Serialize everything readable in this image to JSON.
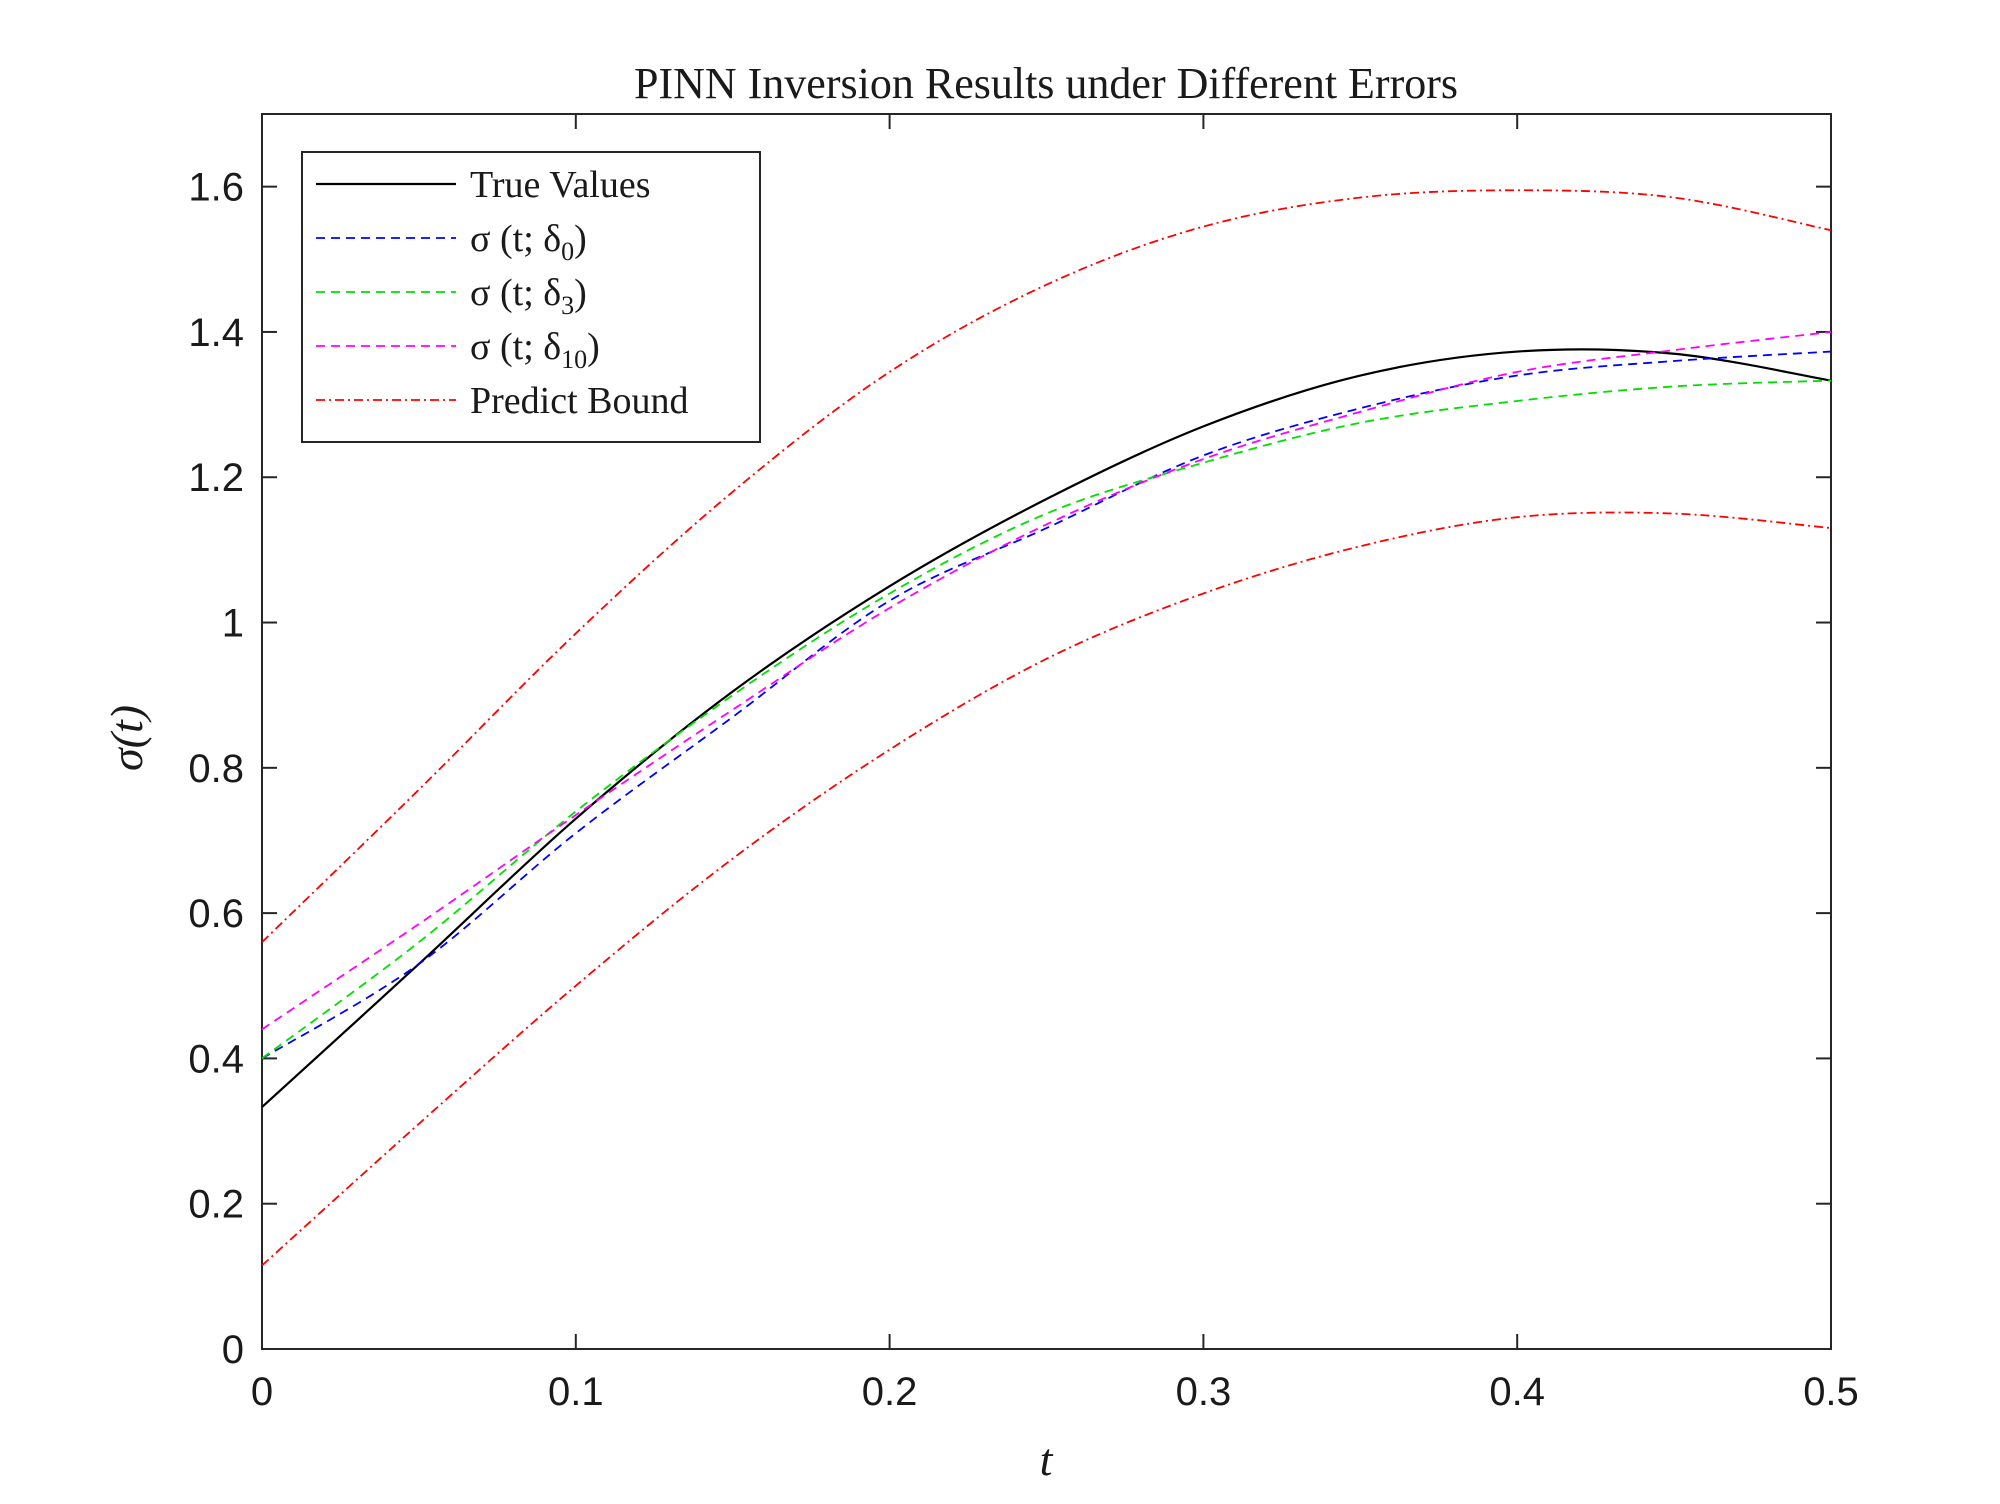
{
  "chart_data": {
    "type": "line",
    "title": "PINN Inversion Results under Different Errors",
    "xlabel": "t",
    "ylabel": "σ(t)",
    "xlim": [
      0,
      0.5
    ],
    "ylim": [
      0,
      1.7
    ],
    "xticks": [
      0,
      0.1,
      0.2,
      0.3,
      0.4,
      0.5
    ],
    "xtick_labels": [
      "0",
      "0.1",
      "0.2",
      "0.3",
      "0.4",
      "0.5"
    ],
    "yticks": [
      0,
      0.2,
      0.4,
      0.6,
      0.8,
      1.0,
      1.2,
      1.4,
      1.6
    ],
    "ytick_labels": [
      "0",
      "0.2",
      "0.4",
      "0.6",
      "0.8",
      "1",
      "1.2",
      "1.4",
      "1.6"
    ],
    "grid": false,
    "legend_position": "top-left",
    "x": [
      0,
      0.05,
      0.1,
      0.15,
      0.2,
      0.25,
      0.3,
      0.35,
      0.4,
      0.45,
      0.5
    ],
    "series": [
      {
        "name": "True Values",
        "legend_main": "True Values",
        "legend_sub": "",
        "legend_tail": "",
        "color": "#000000",
        "style": "solid",
        "values": [
          0.333,
          0.53,
          0.73,
          0.905,
          1.05,
          1.17,
          1.27,
          1.34,
          1.373,
          1.37,
          1.333
        ]
      },
      {
        "name": "σ (t; δ0)",
        "legend_main": "σ (t; δ",
        "legend_sub": "0",
        "legend_tail": ")",
        "color": "#0000ff",
        "style": "dashed",
        "values": [
          0.4,
          0.53,
          0.71,
          0.87,
          1.03,
          1.13,
          1.23,
          1.295,
          1.34,
          1.36,
          1.373
        ]
      },
      {
        "name": "σ (t; δ3)",
        "legend_main": "σ (t; δ",
        "legend_sub": "3",
        "legend_tail": ")",
        "color": "#00e000",
        "style": "dashed",
        "values": [
          0.4,
          0.56,
          0.74,
          0.9,
          1.04,
          1.15,
          1.22,
          1.275,
          1.305,
          1.325,
          1.333
        ]
      },
      {
        "name": "σ (t; δ10)",
        "legend_main": "σ (t; δ",
        "legend_sub": "10",
        "legend_tail": ")",
        "color": "#ff00ff",
        "style": "dashed",
        "values": [
          0.44,
          0.585,
          0.735,
          0.88,
          1.02,
          1.135,
          1.225,
          1.29,
          1.345,
          1.375,
          1.4
        ]
      },
      {
        "name": "Predict Bound",
        "legend_main": "Predict Bound",
        "legend_sub": "",
        "legend_tail": "",
        "color": "#ff0000",
        "style": "dashdot",
        "values": [
          0.56,
          0.77,
          0.985,
          1.18,
          1.345,
          1.465,
          1.545,
          1.585,
          1.595,
          1.585,
          1.54
        ]
      },
      {
        "name": "Predict Bound (lower)",
        "legend_main": "",
        "legend_sub": "",
        "legend_tail": "",
        "color": "#ff0000",
        "style": "dashdot",
        "in_legend": false,
        "values": [
          0.115,
          0.31,
          0.5,
          0.675,
          0.825,
          0.95,
          1.04,
          1.105,
          1.145,
          1.15,
          1.13
        ]
      }
    ]
  }
}
